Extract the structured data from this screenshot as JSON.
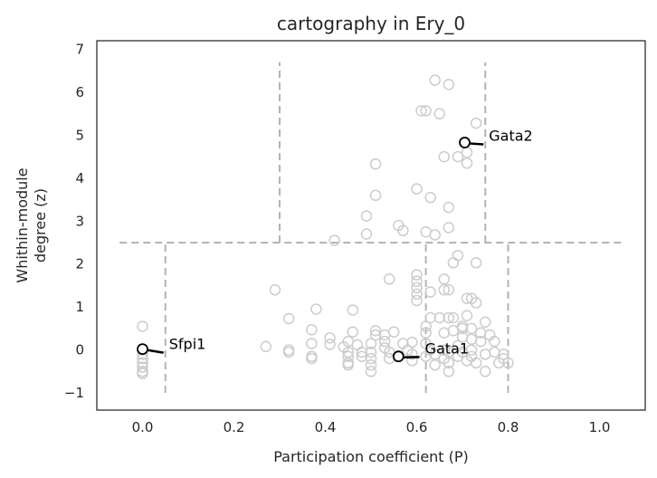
{
  "chart_data": {
    "type": "scatter",
    "title": "cartography in Ery_0",
    "xlabel": "Participation coefficient (P)",
    "ylabel": [
      "Whithin-module",
      "degree (z)"
    ],
    "xlim": [
      -0.1,
      1.1
    ],
    "ylim": [
      -1.4,
      7.2
    ],
    "xticks": [
      0.0,
      0.2,
      0.4,
      0.6,
      0.8,
      1.0
    ],
    "xtick_labels": [
      "0.0",
      "0.2",
      "0.4",
      "0.6",
      "0.8",
      "1.0"
    ],
    "yticks": [
      -1,
      0,
      1,
      2,
      3,
      4,
      5,
      6,
      7
    ],
    "ytick_labels": [
      "−1",
      "0",
      "1",
      "2",
      "3",
      "4",
      "5",
      "6",
      "7"
    ],
    "grid": false,
    "colors": {
      "points": "#cccccc",
      "highlight": "#000000",
      "dividers": "#b3b3b3",
      "axes": "#262626"
    },
    "region_boundaries": [
      {
        "x": [
          -0.05,
          1.05
        ],
        "y": [
          2.5,
          2.5
        ]
      },
      {
        "x": [
          0.05,
          0.05
        ],
        "y": [
          -1,
          2.5
        ]
      },
      {
        "x": [
          0.62,
          0.62
        ],
        "y": [
          -1,
          2.5
        ]
      },
      {
        "x": [
          0.8,
          0.8
        ],
        "y": [
          -1,
          2.5
        ]
      },
      {
        "x": [
          0.3,
          0.3
        ],
        "y": [
          2.5,
          6.7
        ]
      },
      {
        "x": [
          0.75,
          0.75
        ],
        "y": [
          2.5,
          6.7
        ]
      }
    ],
    "points": [
      [
        0.0,
        0.55
      ],
      [
        0.0,
        0.0
      ],
      [
        0.0,
        -0.1
      ],
      [
        0.0,
        -0.2
      ],
      [
        0.0,
        -0.3
      ],
      [
        0.0,
        -0.4
      ],
      [
        0.0,
        -0.5
      ],
      [
        0.0,
        -0.55
      ],
      [
        0.27,
        0.08
      ],
      [
        0.29,
        1.4
      ],
      [
        0.32,
        0.73
      ],
      [
        0.32,
        0.0
      ],
      [
        0.32,
        -0.05
      ],
      [
        0.37,
        0.47
      ],
      [
        0.38,
        0.95
      ],
      [
        0.37,
        0.15
      ],
      [
        0.37,
        -0.15
      ],
      [
        0.37,
        -0.2
      ],
      [
        0.41,
        0.28
      ],
      [
        0.41,
        0.13
      ],
      [
        0.42,
        2.55
      ],
      [
        0.44,
        0.07
      ],
      [
        0.45,
        0.2
      ],
      [
        0.45,
        -0.05
      ],
      [
        0.45,
        -0.15
      ],
      [
        0.45,
        -0.3
      ],
      [
        0.45,
        -0.35
      ],
      [
        0.46,
        0.93
      ],
      [
        0.46,
        0.42
      ],
      [
        0.47,
        0.12
      ],
      [
        0.48,
        -0.05
      ],
      [
        0.48,
        -0.15
      ],
      [
        0.49,
        3.12
      ],
      [
        0.49,
        2.7
      ],
      [
        0.5,
        0.15
      ],
      [
        0.5,
        -0.05
      ],
      [
        0.5,
        -0.2
      ],
      [
        0.5,
        -0.35
      ],
      [
        0.5,
        -0.5
      ],
      [
        0.51,
        4.33
      ],
      [
        0.51,
        3.6
      ],
      [
        0.51,
        0.45
      ],
      [
        0.51,
        0.35
      ],
      [
        0.53,
        0.35
      ],
      [
        0.53,
        0.2
      ],
      [
        0.53,
        0.05
      ],
      [
        0.54,
        1.65
      ],
      [
        0.54,
        -0.05
      ],
      [
        0.54,
        -0.2
      ],
      [
        0.55,
        0.42
      ],
      [
        0.56,
        2.9
      ],
      [
        0.57,
        2.78
      ],
      [
        0.57,
        0.15
      ],
      [
        0.58,
        0.0
      ],
      [
        0.59,
        0.18
      ],
      [
        0.59,
        -0.1
      ],
      [
        0.59,
        -0.25
      ],
      [
        0.6,
        3.75
      ],
      [
        0.6,
        1.75
      ],
      [
        0.6,
        1.6
      ],
      [
        0.6,
        1.45
      ],
      [
        0.6,
        1.3
      ],
      [
        0.6,
        1.15
      ],
      [
        0.61,
        5.57
      ],
      [
        0.62,
        5.57
      ],
      [
        0.62,
        2.75
      ],
      [
        0.62,
        0.55
      ],
      [
        0.62,
        0.4
      ],
      [
        0.62,
        0.15
      ],
      [
        0.63,
        3.55
      ],
      [
        0.63,
        1.35
      ],
      [
        0.63,
        0.75
      ],
      [
        0.63,
        0.0
      ],
      [
        0.64,
        6.28
      ],
      [
        0.64,
        2.68
      ],
      [
        0.64,
        -0.1
      ],
      [
        0.64,
        -0.35
      ],
      [
        0.65,
        5.5
      ],
      [
        0.65,
        0.75
      ],
      [
        0.66,
        4.5
      ],
      [
        0.66,
        1.65
      ],
      [
        0.66,
        1.4
      ],
      [
        0.66,
        0.0
      ],
      [
        0.66,
        -0.2
      ],
      [
        0.67,
        6.18
      ],
      [
        0.67,
        3.32
      ],
      [
        0.67,
        2.85
      ],
      [
        0.67,
        1.4
      ],
      [
        0.67,
        0.75
      ],
      [
        0.67,
        -0.05
      ],
      [
        0.67,
        -0.3
      ],
      [
        0.67,
        -0.5
      ],
      [
        0.68,
        2.03
      ],
      [
        0.68,
        0.75
      ],
      [
        0.68,
        0.45
      ],
      [
        0.69,
        4.5
      ],
      [
        0.69,
        2.2
      ],
      [
        0.69,
        0.1
      ],
      [
        0.69,
        -0.15
      ],
      [
        0.7,
        0.5
      ],
      [
        0.7,
        0.3
      ],
      [
        0.7,
        -0.05
      ],
      [
        0.71,
        4.6
      ],
      [
        0.71,
        4.35
      ],
      [
        0.71,
        1.2
      ],
      [
        0.71,
        0.8
      ],
      [
        0.71,
        -0.25
      ],
      [
        0.72,
        0.5
      ],
      [
        0.72,
        0.25
      ],
      [
        0.72,
        0.0
      ],
      [
        0.72,
        -0.15
      ],
      [
        0.73,
        5.28
      ],
      [
        0.73,
        2.03
      ],
      [
        0.73,
        1.1
      ],
      [
        0.73,
        -0.3
      ],
      [
        0.74,
        0.4
      ],
      [
        0.74,
        0.2
      ],
      [
        0.75,
        0.65
      ],
      [
        0.75,
        -0.1
      ],
      [
        0.75,
        -0.5
      ],
      [
        0.76,
        0.35
      ],
      [
        0.77,
        0.2
      ],
      [
        0.77,
        -0.05
      ],
      [
        0.78,
        -0.3
      ],
      [
        0.79,
        -0.1
      ],
      [
        0.79,
        -0.2
      ],
      [
        0.8,
        -0.3
      ],
      [
        0.72,
        1.2
      ],
      [
        0.7,
        0.55
      ],
      [
        0.66,
        0.4
      ],
      [
        0.62,
        -0.15
      ]
    ],
    "highlighted": [
      {
        "label": "Gata2",
        "x": 0.705,
        "y": 4.83,
        "label_x": 0.75,
        "label_y": 4.85
      },
      {
        "label": "Sfpi1",
        "x": 0.0,
        "y": 0.02,
        "label_x": 0.05,
        "label_y": 0.0
      },
      {
        "label": "Gata1",
        "x": 0.56,
        "y": -0.15,
        "label_x": 0.61,
        "label_y": -0.1
      }
    ]
  }
}
